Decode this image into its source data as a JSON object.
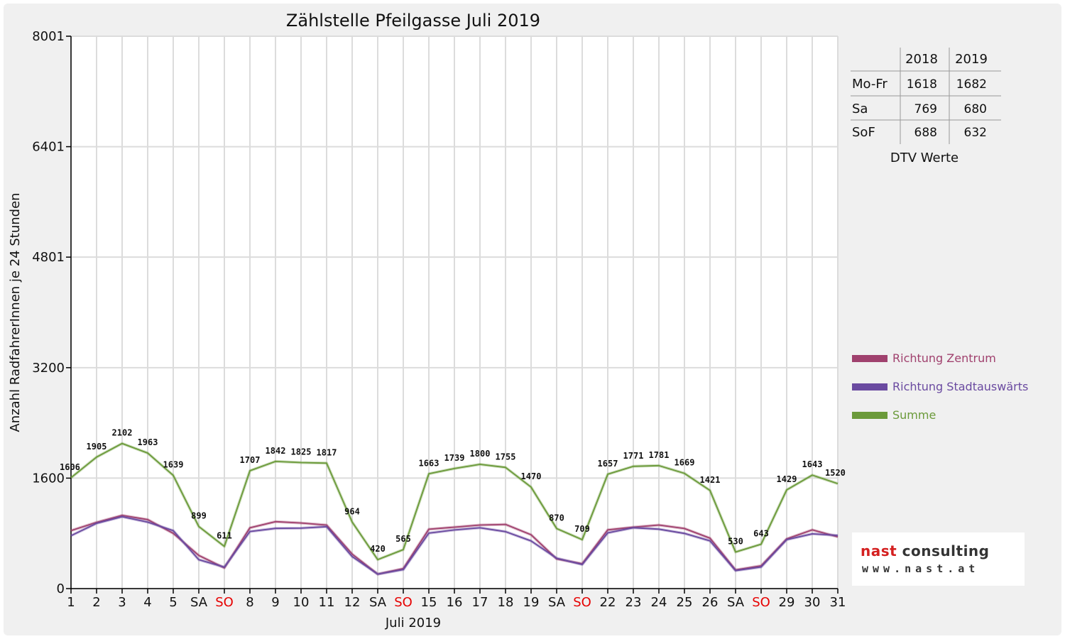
{
  "chart_data": {
    "type": "line",
    "title": "Zählstelle Pfeilgasse Juli 2019",
    "xlabel": "Juli 2019",
    "ylabel": "Anzahl RadfahrerInnen je 24 Stunden",
    "ylim": [
      0,
      8001
    ],
    "yticks": [
      "0",
      "1600",
      "3200",
      "4801",
      "6401",
      "8001"
    ],
    "yticks_values": [
      0,
      1600,
      3200,
      4801,
      6401,
      8001
    ],
    "categories": [
      "1",
      "2",
      "3",
      "4",
      "5",
      "SA",
      "SO",
      "8",
      "9",
      "10",
      "11",
      "12",
      "SA",
      "SO",
      "15",
      "16",
      "17",
      "18",
      "19",
      "SA",
      "SO",
      "22",
      "23",
      "24",
      "25",
      "26",
      "SA",
      "SO",
      "29",
      "30",
      "31"
    ],
    "weekend_red": [
      6,
      13,
      20,
      27
    ],
    "grid": true,
    "legend_position": "right",
    "series": [
      {
        "name": "Richtung Zentrum",
        "color": "#a0416e",
        "values": [
          840,
          960,
          1060,
          1000,
          800,
          480,
          300,
          880,
          970,
          950,
          920,
          500,
          210,
          290,
          860,
          890,
          920,
          930,
          780,
          430,
          360,
          850,
          890,
          920,
          870,
          730,
          270,
          330,
          720,
          850,
          750
        ]
      },
      {
        "name": "Richtung Stadtauswärts",
        "color": "#6a4aa0",
        "values": [
          766,
          945,
          1042,
          963,
          839,
          419,
          311,
          827,
          872,
          875,
          897,
          464,
          210,
          275,
          803,
          849,
          880,
          825,
          690,
          440,
          349,
          807,
          881,
          861,
          799,
          691,
          260,
          313,
          709,
          793,
          770
        ]
      },
      {
        "name": "Summe",
        "color": "#6b9a3a",
        "values": [
          1606,
          1905,
          2102,
          1963,
          1639,
          899,
          611,
          1707,
          1842,
          1825,
          1817,
          964,
          420,
          565,
          1663,
          1739,
          1800,
          1755,
          1470,
          870,
          709,
          1657,
          1771,
          1781,
          1669,
          1421,
          530,
          643,
          1429,
          1643,
          1520
        ]
      }
    ],
    "data_labels": [
      "1606",
      "1905",
      "2102",
      "1963",
      "1639",
      "899",
      "611",
      "1707",
      "1842",
      "1825",
      "1817",
      "964",
      "420",
      "565",
      "1663",
      "1739",
      "1800",
      "1755",
      "1470",
      "870",
      "709",
      "1657",
      "1771",
      "1781",
      "1669",
      "1421",
      "530",
      "643",
      "1429",
      "1643",
      "1520"
    ]
  },
  "dtv_table": {
    "headers": [
      "",
      "2018",
      "2019"
    ],
    "rows": [
      {
        "label": "Mo-Fr",
        "v2018": "1618",
        "v2019": "1682"
      },
      {
        "label": "Sa",
        "v2018": "769",
        "v2019": "680"
      },
      {
        "label": "SoF",
        "v2018": "688",
        "v2019": "632"
      }
    ],
    "caption": "DTV Werte"
  },
  "logo": {
    "word1": "nast",
    "word2": "consulting",
    "url": "www.nast.at",
    "brand_color": "#d42020"
  }
}
